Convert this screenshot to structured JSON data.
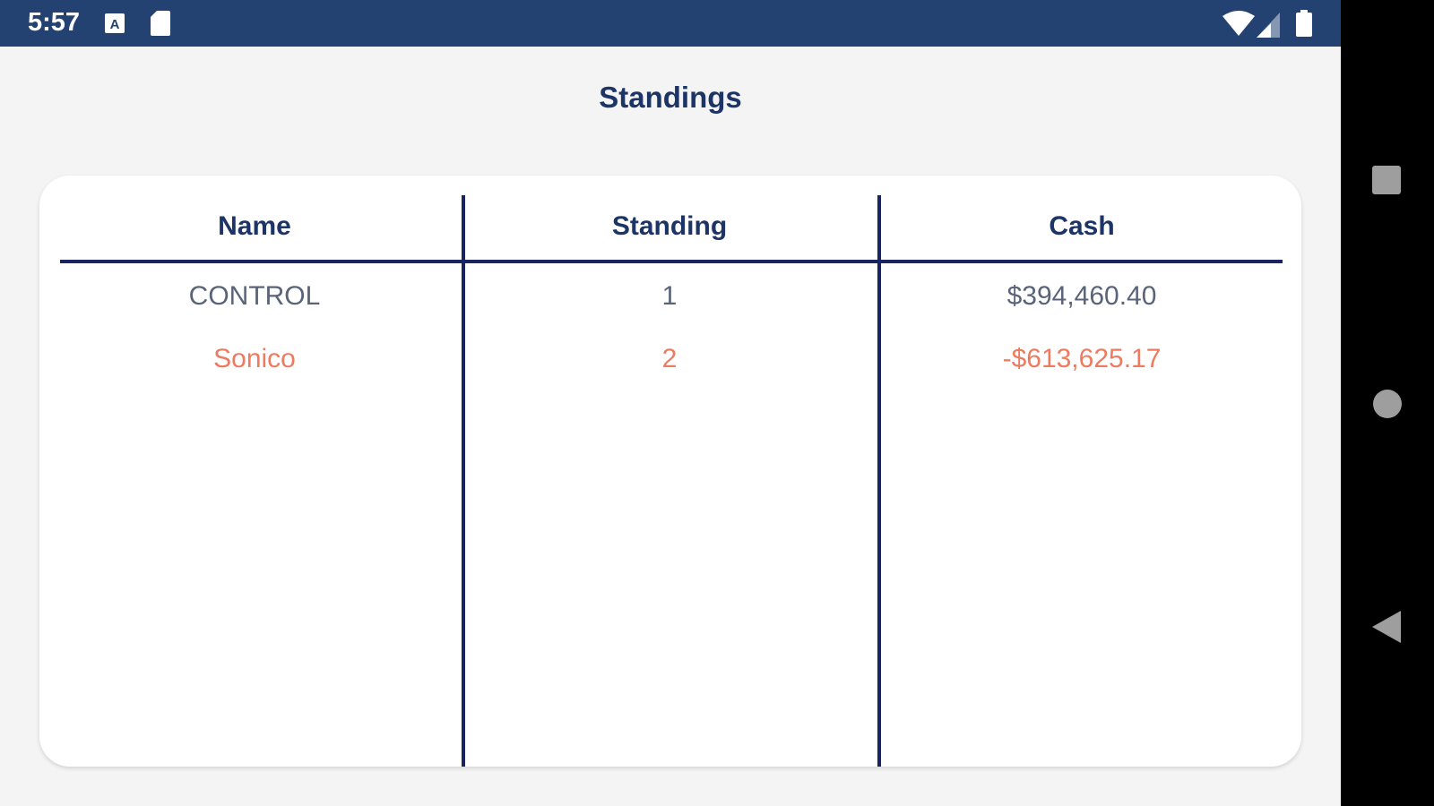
{
  "status_bar": {
    "time": "5:57",
    "icons": [
      "a-notification-icon",
      "sd-card-icon",
      "wifi-icon",
      "signal-icon",
      "battery-icon"
    ],
    "background": "#234272"
  },
  "page": {
    "title": "Standings"
  },
  "table": {
    "headers": [
      "Name",
      "Standing",
      "Cash"
    ],
    "rows": [
      {
        "name": "CONTROL",
        "standing": "1",
        "cash": "$394,460.40",
        "color": "#5a6478"
      },
      {
        "name": "Sonico",
        "standing": "2",
        "cash": "-$613,625.17",
        "color": "#ee7a60"
      }
    ]
  },
  "nav_bar": {
    "buttons": [
      "recents-button",
      "home-button",
      "back-button"
    ]
  }
}
